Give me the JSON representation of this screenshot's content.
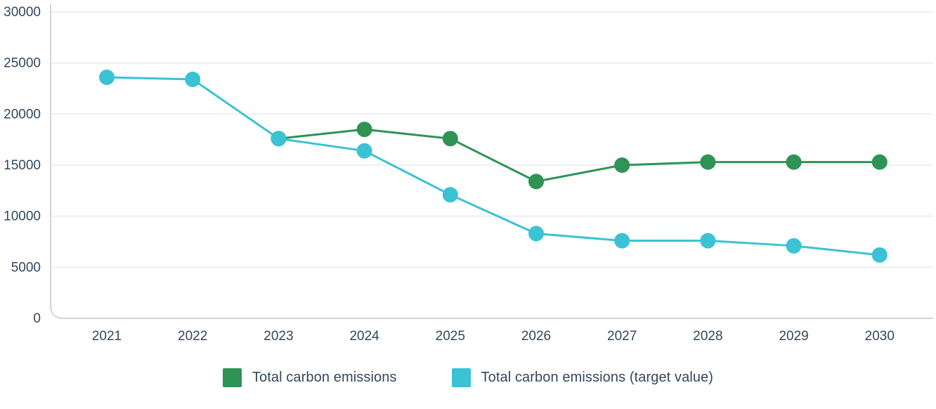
{
  "chart_data": {
    "type": "line",
    "title": "",
    "xlabel": "",
    "ylabel": "",
    "categories": [
      "2021",
      "2022",
      "2023",
      "2024",
      "2025",
      "2026",
      "2027",
      "2028",
      "2029",
      "2030"
    ],
    "series": [
      {
        "name": "Total carbon emissions",
        "color": "#2e9355",
        "values": [
          null,
          null,
          17600,
          18500,
          17600,
          13400,
          15000,
          15300,
          15300,
          15300
        ]
      },
      {
        "name": "Total carbon emissions (target value)",
        "color": "#3bc2d4",
        "values": [
          23600,
          23400,
          17600,
          16400,
          12100,
          8300,
          7600,
          7600,
          7100,
          6200
        ]
      }
    ],
    "ylim": [
      0,
      30000
    ],
    "yticks": [
      0,
      5000,
      10000,
      15000,
      20000,
      25000,
      30000
    ],
    "grid": "horizontal",
    "legend_position": "bottom",
    "marker": "circle"
  },
  "colors": {
    "background": "#ffffff",
    "axis_line": "#c3c6d1",
    "gridline": "#efeff3",
    "tick_text": "#33475b"
  }
}
